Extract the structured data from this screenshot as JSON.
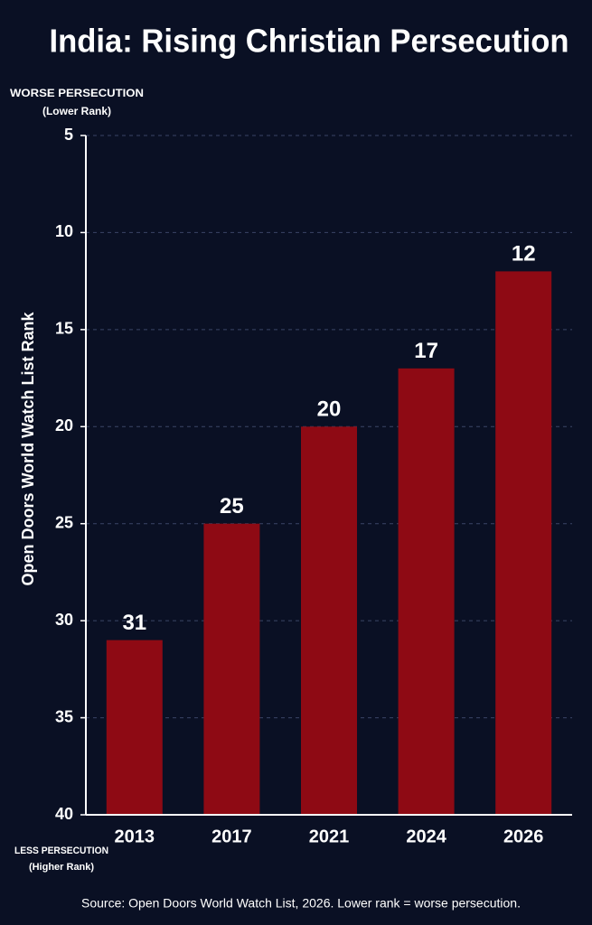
{
  "chart_data": {
    "type": "bar",
    "title": "India: Rising Christian Persecution",
    "y_label": "Open Doors World Watch List Rank",
    "annotations": [
      "WORSE PERSECUTION",
      "(Lower Rank)",
      "LESS PERSECUTION",
      "(Higher Rank)"
    ],
    "source": "Source: Open Doors World Watch List, 2026. Lower rank = worse persecution.",
    "categories": [
      "2013",
      "2017",
      "2021",
      "2024",
      "2026"
    ],
    "values": [
      31,
      25,
      20,
      17,
      12
    ],
    "color": "#8e0a14",
    "ylim": [
      40,
      5
    ],
    "yticks": [
      5,
      10,
      15,
      20,
      25,
      30,
      35,
      40
    ],
    "grid": true
  }
}
